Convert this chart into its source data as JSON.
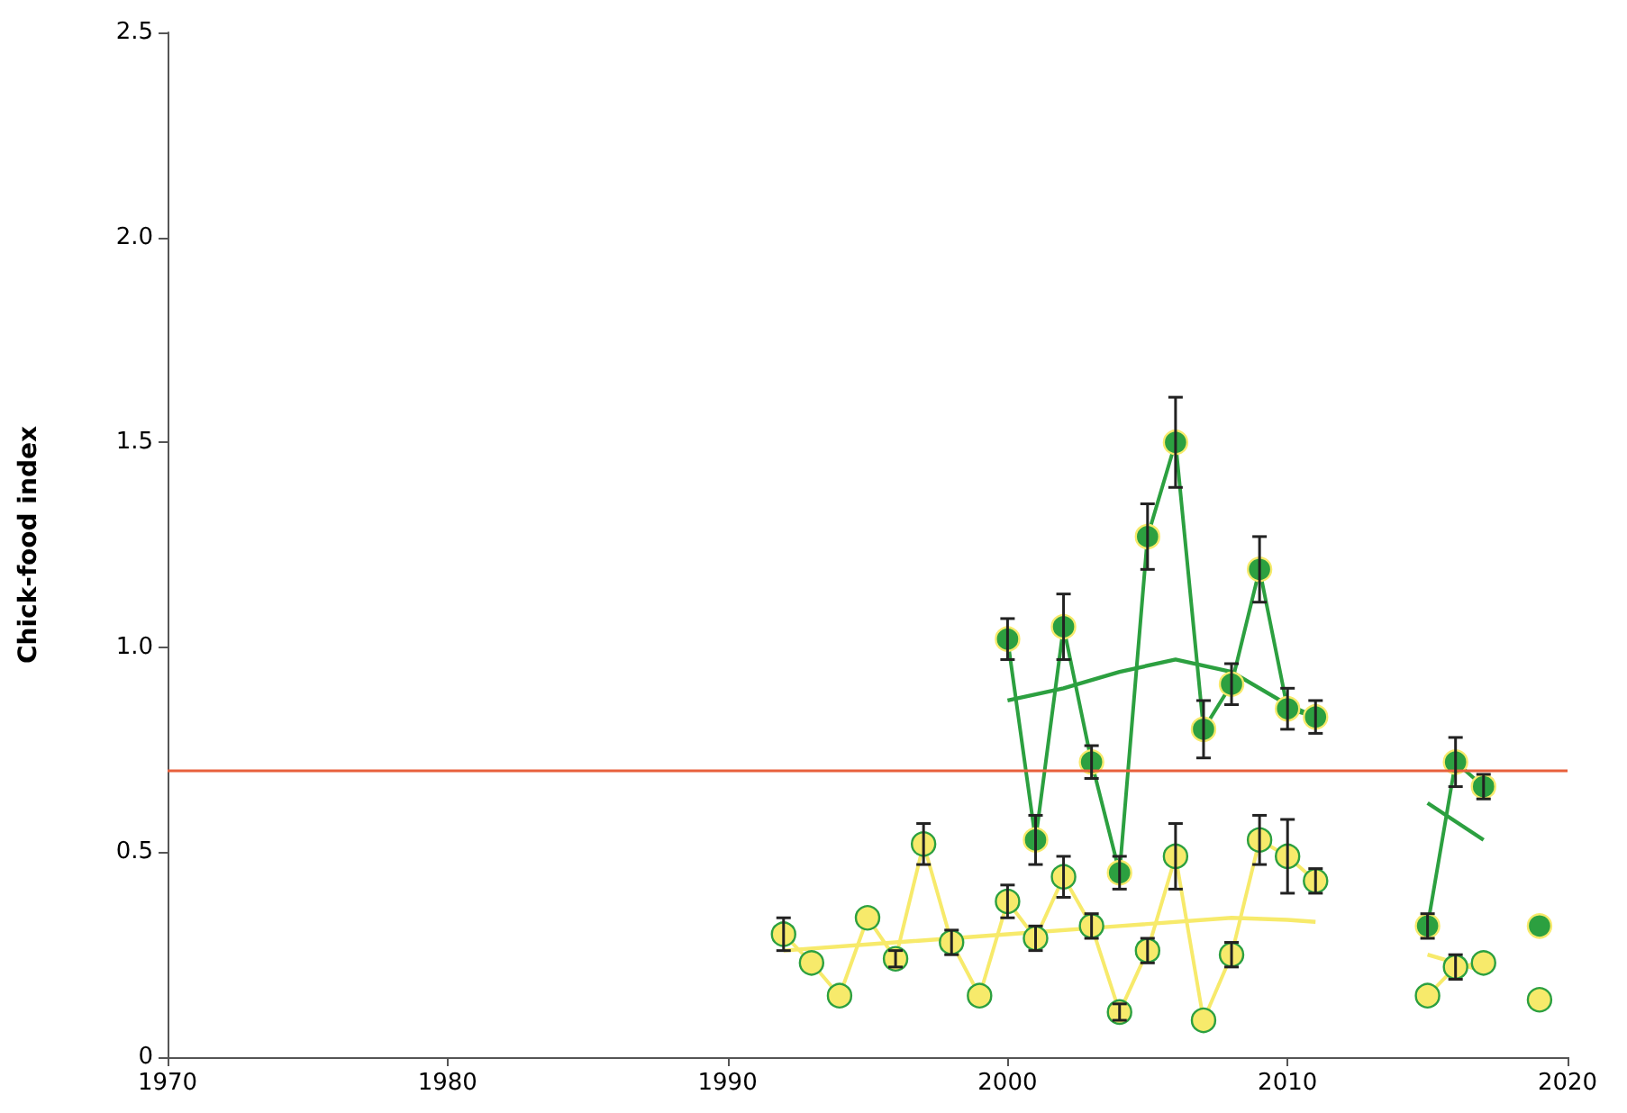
{
  "chart_data": {
    "type": "line",
    "ylabel": "Chick-food index",
    "xlim": [
      1970,
      2020
    ],
    "xticks": [
      1970,
      1980,
      1990,
      2000,
      2010,
      2020
    ],
    "ylim": [
      0,
      2.5
    ],
    "yticks": [
      {
        "value": 0,
        "label": "0"
      },
      {
        "value": 0.5,
        "label": "0.5"
      },
      {
        "value": 1,
        "label": "1.0"
      },
      {
        "value": 1.5,
        "label": "1.5"
      },
      {
        "value": 2,
        "label": "2.0"
      },
      {
        "value": 2.5,
        "label": "2.5"
      }
    ],
    "grid": false,
    "marker": "circle",
    "ref_lines": [
      {
        "axis": "y",
        "value": 0.7,
        "color": "#e8603c"
      }
    ],
    "series": [
      {
        "color": "#f7ea6b",
        "x": [
          1992,
          1993,
          1994,
          1995,
          1996,
          1997,
          1998,
          1999,
          2000,
          2001,
          2002,
          2003,
          2004,
          2005,
          2006,
          2007,
          2008,
          2009,
          2010,
          2011,
          2012,
          2015,
          2016,
          2017,
          2018,
          2019
        ],
        "values": [
          0.3,
          0.23,
          0.15,
          0.34,
          0.24,
          0.52,
          0.28,
          0.15,
          0.38,
          0.29,
          0.44,
          0.32,
          0.11,
          0.26,
          0.49,
          0.09,
          0.25,
          0.53,
          0.49,
          0.43,
          null,
          0.15,
          0.22,
          0.23,
          null,
          0.14
        ],
        "errors": [
          0.04,
          null,
          null,
          null,
          0.02,
          0.05,
          0.03,
          null,
          0.04,
          0.03,
          0.05,
          0.03,
          0.02,
          0.03,
          0.08,
          null,
          0.03,
          0.06,
          0.09,
          0.03,
          null,
          null,
          0.03,
          null,
          null,
          null
        ]
      },
      {
        "color": "#2ca040",
        "x": [
          2000,
          2001,
          2002,
          2003,
          2004,
          2005,
          2006,
          2007,
          2008,
          2009,
          2010,
          2011,
          2012,
          2015,
          2016,
          2017,
          2018,
          2019
        ],
        "values": [
          1.02,
          0.53,
          1.05,
          0.72,
          0.45,
          1.27,
          1.5,
          0.8,
          0.91,
          1.19,
          0.85,
          0.83,
          null,
          0.32,
          0.72,
          0.66,
          null,
          0.32
        ],
        "errors": [
          0.05,
          0.06,
          0.08,
          0.04,
          0.04,
          0.08,
          0.11,
          0.07,
          0.05,
          0.08,
          0.05,
          0.04,
          null,
          0.03,
          0.06,
          0.03,
          null,
          null
        ]
      },
      {
        "color": "#f7ea6b",
        "marker": "none",
        "x": [
          1992,
          1996,
          2000,
          2004,
          2008,
          2010,
          2011
        ],
        "values": [
          0.26,
          0.28,
          0.3,
          0.32,
          0.34,
          0.335,
          0.33
        ]
      },
      {
        "color": "#f7ea6b",
        "marker": "none",
        "x": [
          2015,
          2017
        ],
        "values": [
          0.25,
          0.21
        ]
      },
      {
        "color": "#2ca040",
        "marker": "none",
        "x": [
          2000,
          2002,
          2004,
          2006,
          2008,
          2010,
          2011
        ],
        "values": [
          0.87,
          0.9,
          0.94,
          0.97,
          0.94,
          0.86,
          0.83
        ]
      },
      {
        "color": "#2ca040",
        "marker": "none",
        "x": [
          2015,
          2017
        ],
        "values": [
          0.62,
          0.53
        ]
      }
    ]
  }
}
